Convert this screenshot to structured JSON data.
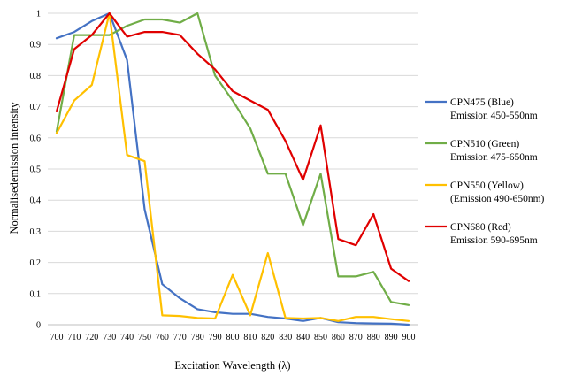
{
  "chart_data": {
    "type": "line",
    "xlabel": "Excitation Wavelength (λ)",
    "ylabel": "Normalisedemission intensity",
    "x": [
      700,
      710,
      720,
      730,
      740,
      750,
      760,
      770,
      780,
      790,
      800,
      810,
      820,
      830,
      840,
      850,
      860,
      870,
      880,
      890,
      900
    ],
    "ylim": [
      0,
      1
    ],
    "yticks": [
      "0",
      "0.1",
      "0.2",
      "0.3",
      "0.4",
      "0.5",
      "0.6",
      "0.7",
      "0.8",
      "0.9",
      "1"
    ],
    "grid": "horizontal",
    "legend_position": "right",
    "series": [
      {
        "name": "CPN475 (Blue)",
        "legend_sub": "Emission 450-550nm",
        "color": "#4472C4",
        "values": [
          0.92,
          0.94,
          0.975,
          1.0,
          0.85,
          0.37,
          0.13,
          0.085,
          0.05,
          0.04,
          0.035,
          0.035,
          0.025,
          0.02,
          0.012,
          0.022,
          0.008,
          0.005,
          0.004,
          0.003,
          0.0
        ]
      },
      {
        "name": "CPN510 (Green)",
        "legend_sub": "Emission 475-650nm",
        "color": "#70AD47",
        "values": [
          0.62,
          0.93,
          0.93,
          0.93,
          0.96,
          0.98,
          0.98,
          0.97,
          1.0,
          0.8,
          0.72,
          0.63,
          0.485,
          0.485,
          0.32,
          0.485,
          0.155,
          0.155,
          0.17,
          0.073,
          0.063
        ]
      },
      {
        "name": "CPN550 (Yellow)",
        "legend_sub": "(Emission 490-650nm)",
        "color": "#FFC000",
        "values": [
          0.615,
          0.72,
          0.77,
          1.0,
          0.545,
          0.525,
          0.03,
          0.028,
          0.022,
          0.02,
          0.16,
          0.03,
          0.23,
          0.022,
          0.02,
          0.022,
          0.012,
          0.025,
          0.025,
          0.018,
          0.012
        ]
      },
      {
        "name": "CPN680 (Red)",
        "legend_sub": "Emission 590-695nm",
        "color": "#E00000",
        "values": [
          0.685,
          0.885,
          0.93,
          1.0,
          0.925,
          0.94,
          0.94,
          0.93,
          0.87,
          0.82,
          0.75,
          0.72,
          0.69,
          0.59,
          0.465,
          0.64,
          0.275,
          0.255,
          0.355,
          0.18,
          0.14
        ]
      }
    ]
  }
}
